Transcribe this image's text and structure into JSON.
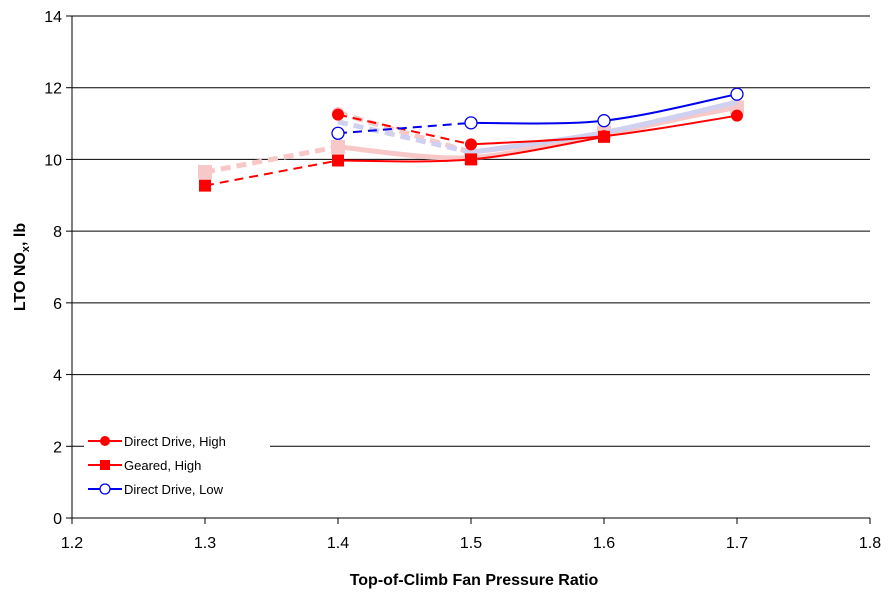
{
  "chart_data": {
    "type": "line",
    "xlabel": "Top-of-Climb Fan Pressure Ratio",
    "ylabel_main": "LTO NO",
    "ylabel_sub": "x",
    "ylabel_tail": ", lb",
    "xlim": [
      1.2,
      1.8
    ],
    "ylim": [
      0,
      14
    ],
    "xticks": [
      "1.2",
      "1.3",
      "1.4",
      "1.5",
      "1.6",
      "1.7",
      "1.8"
    ],
    "yticks": [
      "0",
      "2",
      "4",
      "6",
      "8",
      "10",
      "12",
      "14"
    ],
    "grid": "horizontal",
    "legend_position": "bottom-left",
    "series": [
      {
        "name": "Direct Drive, High",
        "color": "#ff0000",
        "marker": "circle-filled",
        "x": [
          1.4,
          1.5,
          1.6,
          1.7
        ],
        "y": [
          11.25,
          10.42,
          10.65,
          11.22
        ],
        "dashed_segments": [
          [
            0,
            1
          ]
        ]
      },
      {
        "name": "Geared, High",
        "color": "#ff0000",
        "marker": "square-filled",
        "x": [
          1.3,
          1.4,
          1.5,
          1.6
        ],
        "y": [
          9.27,
          9.97,
          10.0,
          10.63
        ],
        "dashed_segments": [
          [
            0,
            1
          ]
        ]
      },
      {
        "name": "Direct Drive, Low",
        "color": "#0000ee",
        "marker": "circle-open",
        "x": [
          1.4,
          1.5,
          1.6,
          1.7
        ],
        "y": [
          10.73,
          11.02,
          11.08,
          11.82
        ],
        "dashed_segments": [
          [
            0,
            1
          ]
        ]
      }
    ],
    "faded_series": [
      {
        "color": "#f8c8c8",
        "marker": "circle-filled",
        "x": [
          1.4,
          1.5,
          1.6,
          1.7
        ],
        "y": [
          11.3,
          10.2,
          10.7,
          11.5
        ],
        "dashed_segments": [
          [
            0,
            1
          ]
        ]
      },
      {
        "color": "#f8c8c8",
        "marker": "square-filled",
        "x": [
          1.3,
          1.4,
          1.5,
          1.6,
          1.7
        ],
        "y": [
          9.65,
          10.35,
          10.05,
          10.75,
          11.45
        ],
        "dashed_segments": [
          [
            0,
            1
          ]
        ]
      },
      {
        "color": "#d0d0f0",
        "marker": "none",
        "x": [
          1.4,
          1.5,
          1.6,
          1.7
        ],
        "y": [
          11.05,
          10.2,
          10.75,
          11.6
        ],
        "dashed_segments": [
          [
            0,
            1
          ]
        ]
      }
    ]
  }
}
